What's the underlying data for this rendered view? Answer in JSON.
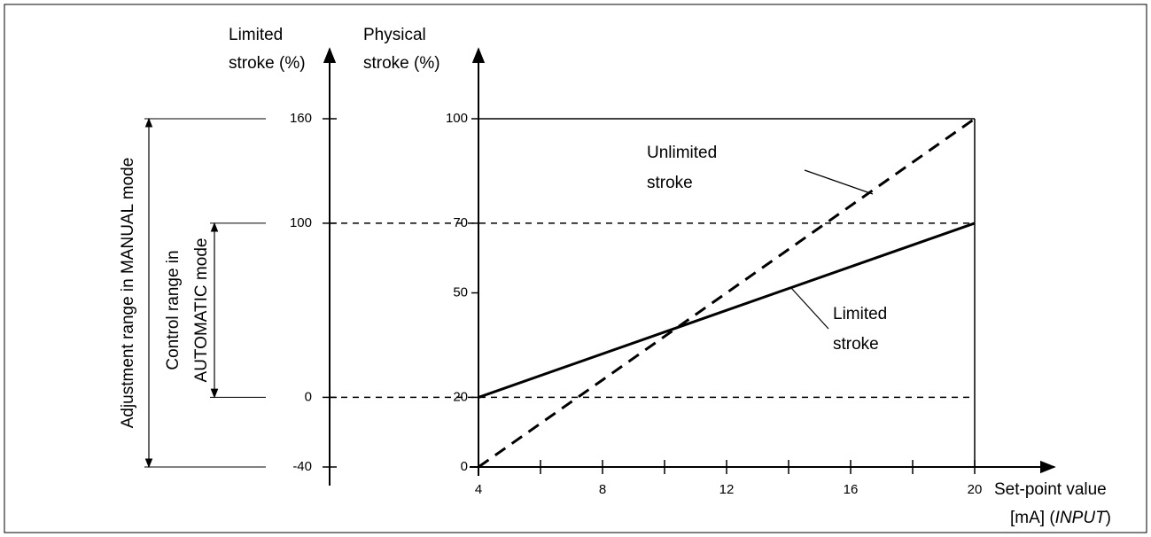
{
  "chart_data": {
    "type": "line",
    "y_label": [
      "Physical",
      "stroke (%)"
    ],
    "y2_label": [
      "Limited",
      "stroke (%)"
    ],
    "x_label": "Set-point value",
    "x_label_unit": [
      "[mA] (",
      "INPUT",
      ")"
    ],
    "x": [
      4,
      20
    ],
    "series": [
      {
        "name": [
          "Unlimited",
          "stroke"
        ],
        "color": "#000000",
        "dashed": true,
        "values": [
          0,
          100
        ]
      },
      {
        "name": [
          "Limited",
          "stroke"
        ],
        "color": "#000000",
        "dashed": false,
        "values": [
          20,
          70
        ]
      }
    ],
    "xlim": [
      4,
      20
    ],
    "xticks": [
      4,
      8,
      12,
      16,
      20
    ],
    "x_minor_ticks": [
      6,
      10,
      14,
      18
    ],
    "ylim": [
      0,
      100
    ],
    "yticks": [
      0,
      20,
      50,
      70,
      100
    ],
    "y2lim": [
      -40,
      160
    ],
    "y2ticks": [
      -40,
      0,
      100,
      160
    ],
    "ranges": [
      {
        "label": "Adjustment range in MANUAL mode",
        "from": -40,
        "to": 160
      },
      {
        "label": [
          "Control range in",
          "AUTOMATIC mode"
        ],
        "from": 0,
        "to": 100
      }
    ]
  }
}
